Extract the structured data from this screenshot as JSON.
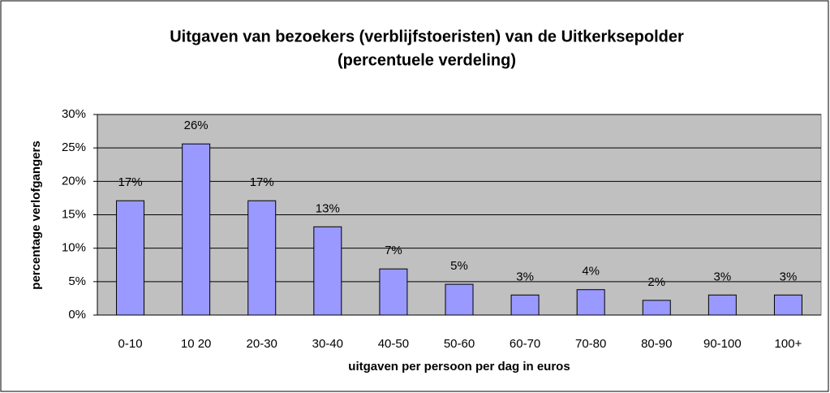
{
  "chart_data": {
    "type": "bar",
    "title": [
      "Uitgaven van bezoekers (verblijfstoeristen) van de Uitkerksepolder",
      "(percentuele verdeling)"
    ],
    "x_label": "uitgaven per persoon per dag in euros",
    "y_label": "percentage verlofgangers",
    "categories": [
      "0-10",
      "10 20",
      "20-30",
      "30-40",
      "40-50",
      "50-60",
      "60-70",
      "70-80",
      "80-90",
      "90-100",
      "100+"
    ],
    "values": [
      17.1,
      25.6,
      17.1,
      13.2,
      6.9,
      4.6,
      3.0,
      3.8,
      2.2,
      3.0,
      3.0
    ],
    "value_labels": [
      "17%",
      "26%",
      "17%",
      "13%",
      "7%",
      "5%",
      "3%",
      "4%",
      "2%",
      "3%",
      "3%"
    ],
    "color": "#9999ff",
    "ylim": [
      0,
      30
    ],
    "yticks": [
      {
        "value": 0,
        "label": "0%"
      },
      {
        "value": 5,
        "label": "5%"
      },
      {
        "value": 10,
        "label": "10%"
      },
      {
        "value": 15,
        "label": "15%"
      },
      {
        "value": 20,
        "label": "20%"
      },
      {
        "value": 25,
        "label": "25%"
      },
      {
        "value": 30,
        "label": "30%"
      }
    ],
    "grid": true
  }
}
